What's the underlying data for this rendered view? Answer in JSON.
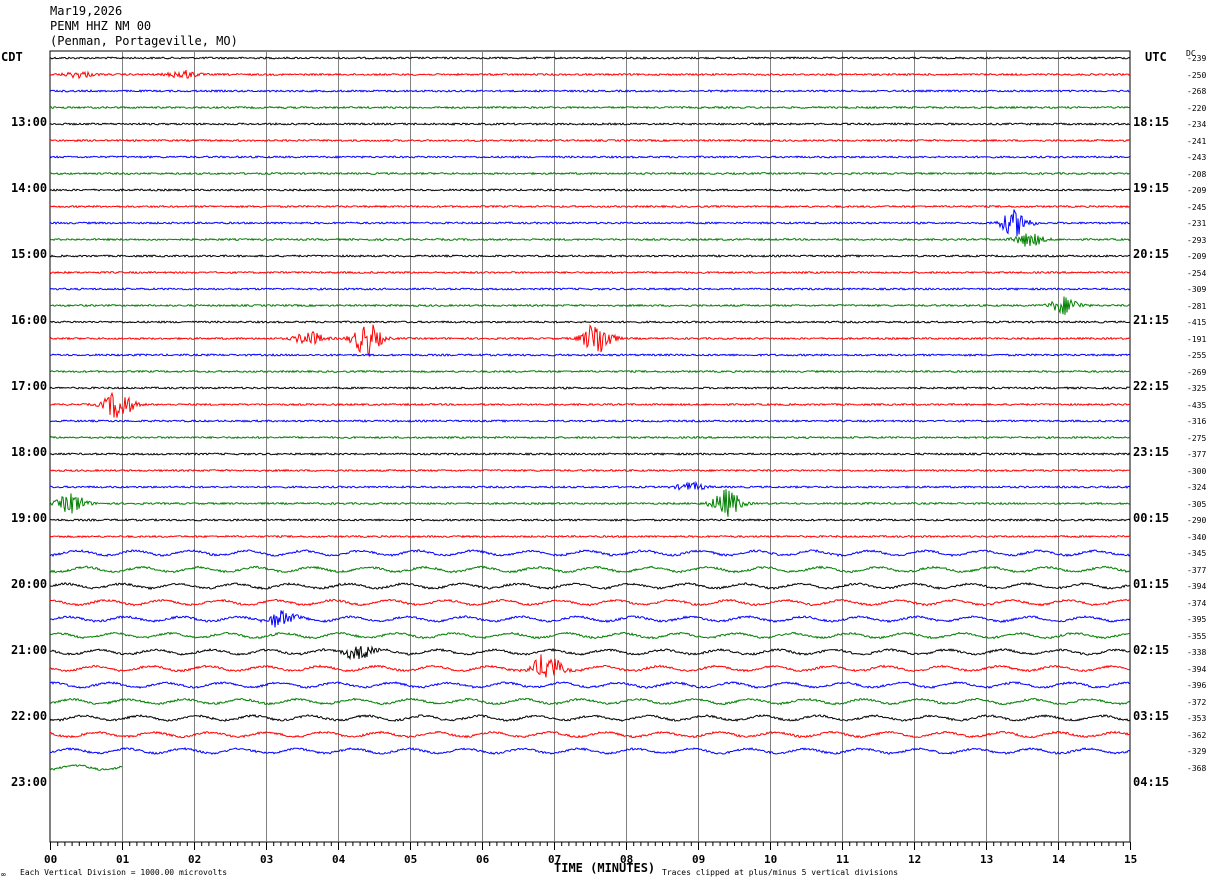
{
  "header": {
    "date": "Mar19,2026",
    "station": "PENM HHZ NM 00",
    "location": "(Penman, Portageville, MO)"
  },
  "left_tz": "CDT",
  "right_tz": "UTC",
  "dc_label": "DC",
  "footer": {
    "left": "Each Vertical Division = 1000.00 microvolts",
    "center": "TIME (MINUTES)",
    "right": "Traces clipped at plus/minus 5 vertical divisions"
  },
  "chart_data": {
    "type": "line",
    "title": "",
    "xlabel": "TIME (MINUTES)",
    "ylabel": "",
    "x_ticks": [
      "00",
      "01",
      "02",
      "03",
      "04",
      "05",
      "06",
      "07",
      "08",
      "09",
      "10",
      "11",
      "12",
      "13",
      "14",
      "15"
    ],
    "xlim": [
      0,
      15
    ],
    "left_time_labels": [
      "13:00",
      "14:00",
      "15:00",
      "16:00",
      "17:00",
      "18:00",
      "19:00",
      "20:00",
      "21:00",
      "22:00",
      "23:00"
    ],
    "right_time_labels": [
      "18:15",
      "19:15",
      "20:15",
      "21:15",
      "22:15",
      "23:15",
      "00:15",
      "01:15",
      "02:15",
      "03:15",
      "04:15"
    ],
    "trace_colors": [
      "#000000",
      "#ff0000",
      "#0000ff",
      "#008000"
    ],
    "traces_per_hour": 4,
    "minutes_per_trace": 15,
    "dc_offsets": [
      "-239",
      "-250",
      "-268",
      "-220",
      "-234",
      "-241",
      "-243",
      "-208",
      "-209",
      "-245",
      "-231",
      "-293",
      "-209",
      "-254",
      "-309",
      "-281",
      "-415",
      "-191",
      "-255",
      "-269",
      "-325",
      "-435",
      "-316",
      "-275",
      "-377",
      "-300",
      "-324",
      "-305",
      "-290",
      "-340",
      "-345",
      "-377",
      "-394",
      "-374",
      "-395",
      "-355",
      "-338",
      "-394",
      "-396",
      "-372",
      "-353",
      "-362",
      "-329",
      "-368"
    ],
    "last_trace_end_minute": 1.0,
    "events": [
      {
        "trace": 1,
        "minute": 0.4,
        "amplitude": 3
      },
      {
        "trace": 1,
        "minute": 1.85,
        "amplitude": 4
      },
      {
        "trace": 10,
        "minute": 13.4,
        "amplitude": 13
      },
      {
        "trace": 11,
        "minute": 13.6,
        "amplitude": 7
      },
      {
        "trace": 15,
        "minute": 14.1,
        "amplitude": 9
      },
      {
        "trace": 17,
        "minute": 3.6,
        "amplitude": 7
      },
      {
        "trace": 17,
        "minute": 4.4,
        "amplitude": 17
      },
      {
        "trace": 17,
        "minute": 7.6,
        "amplitude": 18
      },
      {
        "trace": 21,
        "minute": 0.95,
        "amplitude": 15
      },
      {
        "trace": 26,
        "minute": 8.9,
        "amplitude": 4
      },
      {
        "trace": 27,
        "minute": 0.3,
        "amplitude": 10
      },
      {
        "trace": 27,
        "minute": 9.4,
        "amplitude": 14
      },
      {
        "trace": 34,
        "minute": 3.2,
        "amplitude": 8
      },
      {
        "trace": 36,
        "minute": 4.3,
        "amplitude": 7
      },
      {
        "trace": 37,
        "minute": 6.9,
        "amplitude": 14
      }
    ]
  }
}
